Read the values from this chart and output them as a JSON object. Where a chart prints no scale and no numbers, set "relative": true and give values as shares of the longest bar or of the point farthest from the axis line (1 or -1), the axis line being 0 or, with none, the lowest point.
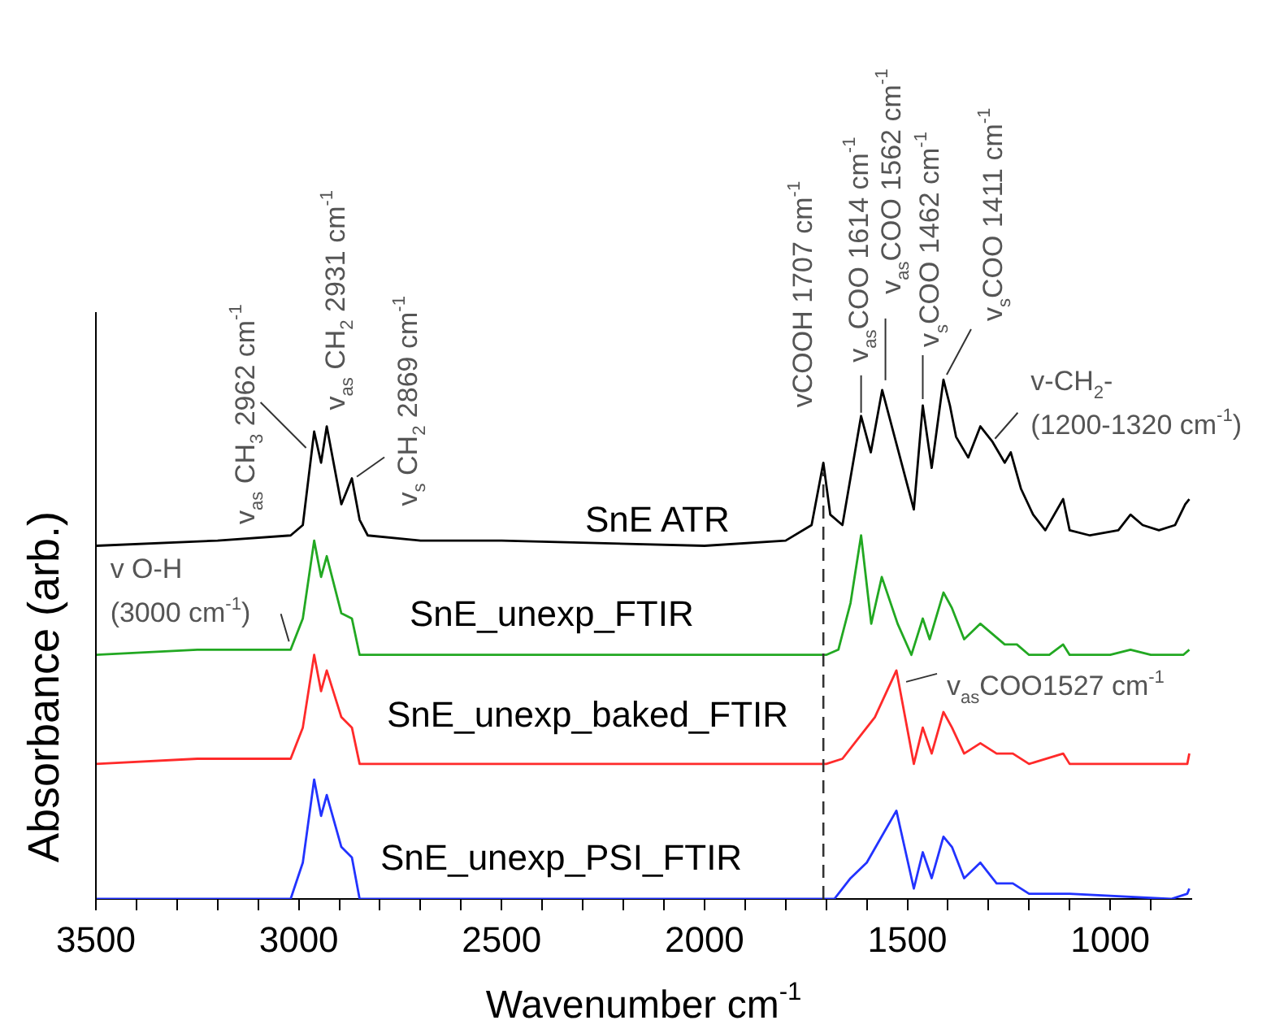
{
  "chart_data": {
    "type": "line",
    "relative": true,
    "xlabel": "Wavenumber cm$^{-1}$",
    "ylabel": "Absorbance (arb.)",
    "legend": false,
    "grid": false,
    "marker": "none",
    "line_style": "solid",
    "xlim": [
      3500,
      800
    ],
    "xticks": [
      3500,
      {
        "value": 3400,
        "label": null
      },
      {
        "value": 3300,
        "label": null
      },
      {
        "value": 3200,
        "label": null
      },
      {
        "value": 3100,
        "label": null
      },
      3000,
      {
        "value": 2900,
        "label": null
      },
      {
        "value": 2800,
        "label": null
      },
      {
        "value": 2700,
        "label": null
      },
      {
        "value": 2600,
        "label": null
      },
      2500,
      {
        "value": 2400,
        "label": null
      },
      {
        "value": 2300,
        "label": null
      },
      {
        "value": 2200,
        "label": null
      },
      {
        "value": 2100,
        "label": null
      },
      2000,
      {
        "value": 1900,
        "label": null
      },
      {
        "value": 1800,
        "label": null
      },
      {
        "value": 1700,
        "label": null
      },
      {
        "value": 1600,
        "label": null
      },
      1500,
      {
        "value": 1400,
        "label": null
      },
      {
        "value": 1300,
        "label": null
      },
      {
        "value": 1200,
        "label": null
      },
      {
        "value": 1100,
        "label": null
      },
      1000,
      {
        "value": 900,
        "label": null
      }
    ],
    "series": [
      {
        "name": "SnE ATR",
        "color": "#000000",
        "x": [
          3500,
          3200,
          3020,
          2990,
          2962,
          2945,
          2931,
          2895,
          2869,
          2850,
          2830,
          2700,
          2500,
          2000,
          1800,
          1736,
          1707,
          1690,
          1660,
          1614,
          1590,
          1562,
          1484,
          1462,
          1440,
          1411,
          1395,
          1380,
          1350,
          1320,
          1290,
          1260,
          1245,
          1220,
          1190,
          1160,
          1116,
          1100,
          1050,
          980,
          950,
          920,
          880,
          840,
          815,
          805
        ],
        "values": [
          0.68,
          0.69,
          0.7,
          0.72,
          0.9,
          0.84,
          0.91,
          0.76,
          0.81,
          0.73,
          0.7,
          0.69,
          0.69,
          0.68,
          0.69,
          0.72,
          0.84,
          0.74,
          0.72,
          0.93,
          0.86,
          0.98,
          0.75,
          0.95,
          0.83,
          1.0,
          0.95,
          0.89,
          0.85,
          0.91,
          0.88,
          0.84,
          0.86,
          0.79,
          0.74,
          0.71,
          0.77,
          0.71,
          0.7,
          0.71,
          0.74,
          0.72,
          0.71,
          0.72,
          0.76,
          0.77
        ]
      },
      {
        "name": "SnE_unexp_FTIR",
        "color": "#22a822",
        "x": [
          3500,
          3250,
          3020,
          2990,
          2962,
          2945,
          2931,
          2895,
          2869,
          2850,
          2500,
          2000,
          1700,
          1670,
          1640,
          1614,
          1589,
          1563,
          1524,
          1490,
          1462,
          1445,
          1411,
          1390,
          1360,
          1320,
          1290,
          1260,
          1230,
          1200,
          1150,
          1116,
          1100,
          1000,
          950,
          900,
          820,
          805
        ],
        "values": [
          0.47,
          0.48,
          0.48,
          0.54,
          0.69,
          0.62,
          0.66,
          0.55,
          0.54,
          0.47,
          0.47,
          0.47,
          0.47,
          0.48,
          0.57,
          0.7,
          0.53,
          0.62,
          0.53,
          0.47,
          0.54,
          0.5,
          0.59,
          0.56,
          0.5,
          0.53,
          0.51,
          0.49,
          0.49,
          0.47,
          0.47,
          0.49,
          0.47,
          0.47,
          0.48,
          0.47,
          0.47,
          0.48
        ]
      },
      {
        "name": "SnE_unexp_baked_FTIR",
        "color": "#ff2a2a",
        "x": [
          3500,
          3250,
          3020,
          2990,
          2962,
          2945,
          2931,
          2895,
          2869,
          2850,
          2500,
          2000,
          1700,
          1660,
          1620,
          1580,
          1527,
          1484,
          1462,
          1440,
          1411,
          1390,
          1360,
          1320,
          1280,
          1240,
          1200,
          1116,
          1100,
          850,
          810,
          805
        ],
        "values": [
          0.26,
          0.27,
          0.27,
          0.33,
          0.47,
          0.4,
          0.44,
          0.35,
          0.33,
          0.26,
          0.26,
          0.26,
          0.26,
          0.27,
          0.31,
          0.35,
          0.44,
          0.26,
          0.33,
          0.28,
          0.36,
          0.33,
          0.28,
          0.3,
          0.28,
          0.28,
          0.26,
          0.28,
          0.26,
          0.26,
          0.26,
          0.28
        ]
      },
      {
        "name": "SnE_unexp_PSI_FTIR",
        "color": "#2233ff",
        "x": [
          3500,
          3020,
          2990,
          2962,
          2945,
          2931,
          2895,
          2869,
          2850,
          2500,
          2000,
          1700,
          1680,
          1640,
          1600,
          1527,
          1484,
          1462,
          1440,
          1411,
          1390,
          1360,
          1320,
          1280,
          1240,
          1200,
          1100,
          850,
          810,
          805
        ],
        "values": [
          0,
          0,
          0.07,
          0.23,
          0.16,
          0.2,
          0.1,
          0.08,
          0,
          0,
          0,
          0,
          0,
          0.04,
          0.07,
          0.17,
          0.02,
          0.09,
          0.04,
          0.12,
          0.1,
          0.04,
          0.07,
          0.03,
          0.03,
          0.01,
          0.01,
          0,
          0.01,
          0.02
        ]
      }
    ],
    "ref_lines": [
      {
        "axis": "x",
        "value": 1707,
        "color": "#333333",
        "line_style": "dashed"
      }
    ],
    "annotations": [
      {
        "text": "v$_{as}$ CH$_{3}$ 2962 cm$^{-1}$",
        "x": 2962,
        "y": 0.9
      },
      {
        "text": "v$_{as}$ CH$_{2}$ 2931 cm$^{-1}$",
        "x": 2931,
        "y": 0.91
      },
      {
        "text": "v$_{s}$ CH$_{2}$ 2869 cm$^{-1}$",
        "x": 2869,
        "y": 0.81
      },
      {
        "text": "vCOOH 1707 cm$^{-1}$",
        "x": 1707,
        "y": 0.84
      },
      {
        "text": "v$_{as}$COO 1614 cm$^{-1}$",
        "x": 1614,
        "y": 0.93
      },
      {
        "text": "v$_{as}$COO 1562 cm$^{-1}$",
        "x": 1562,
        "y": 0.98
      },
      {
        "text": "v$_{s}$COO 1462 cm$^{-1}$",
        "x": 1462,
        "y": 0.95
      },
      {
        "text": "v$_{s}$COO 1411 cm$^{-1}$",
        "x": 1411,
        "y": 1.0
      },
      {
        "text": "v-CH$_{2}$-\n(1200-1320 cm$^{-1}$)",
        "x": 1300,
        "y": 0.88
      },
      {
        "text": "v O-H\n(3000 cm$^{-1}$)",
        "x": 3000,
        "y": 0.48
      },
      {
        "text": "v$_{as}$COO1527 cm$^{-1}$",
        "x": 1527,
        "y": 0.44
      }
    ]
  }
}
